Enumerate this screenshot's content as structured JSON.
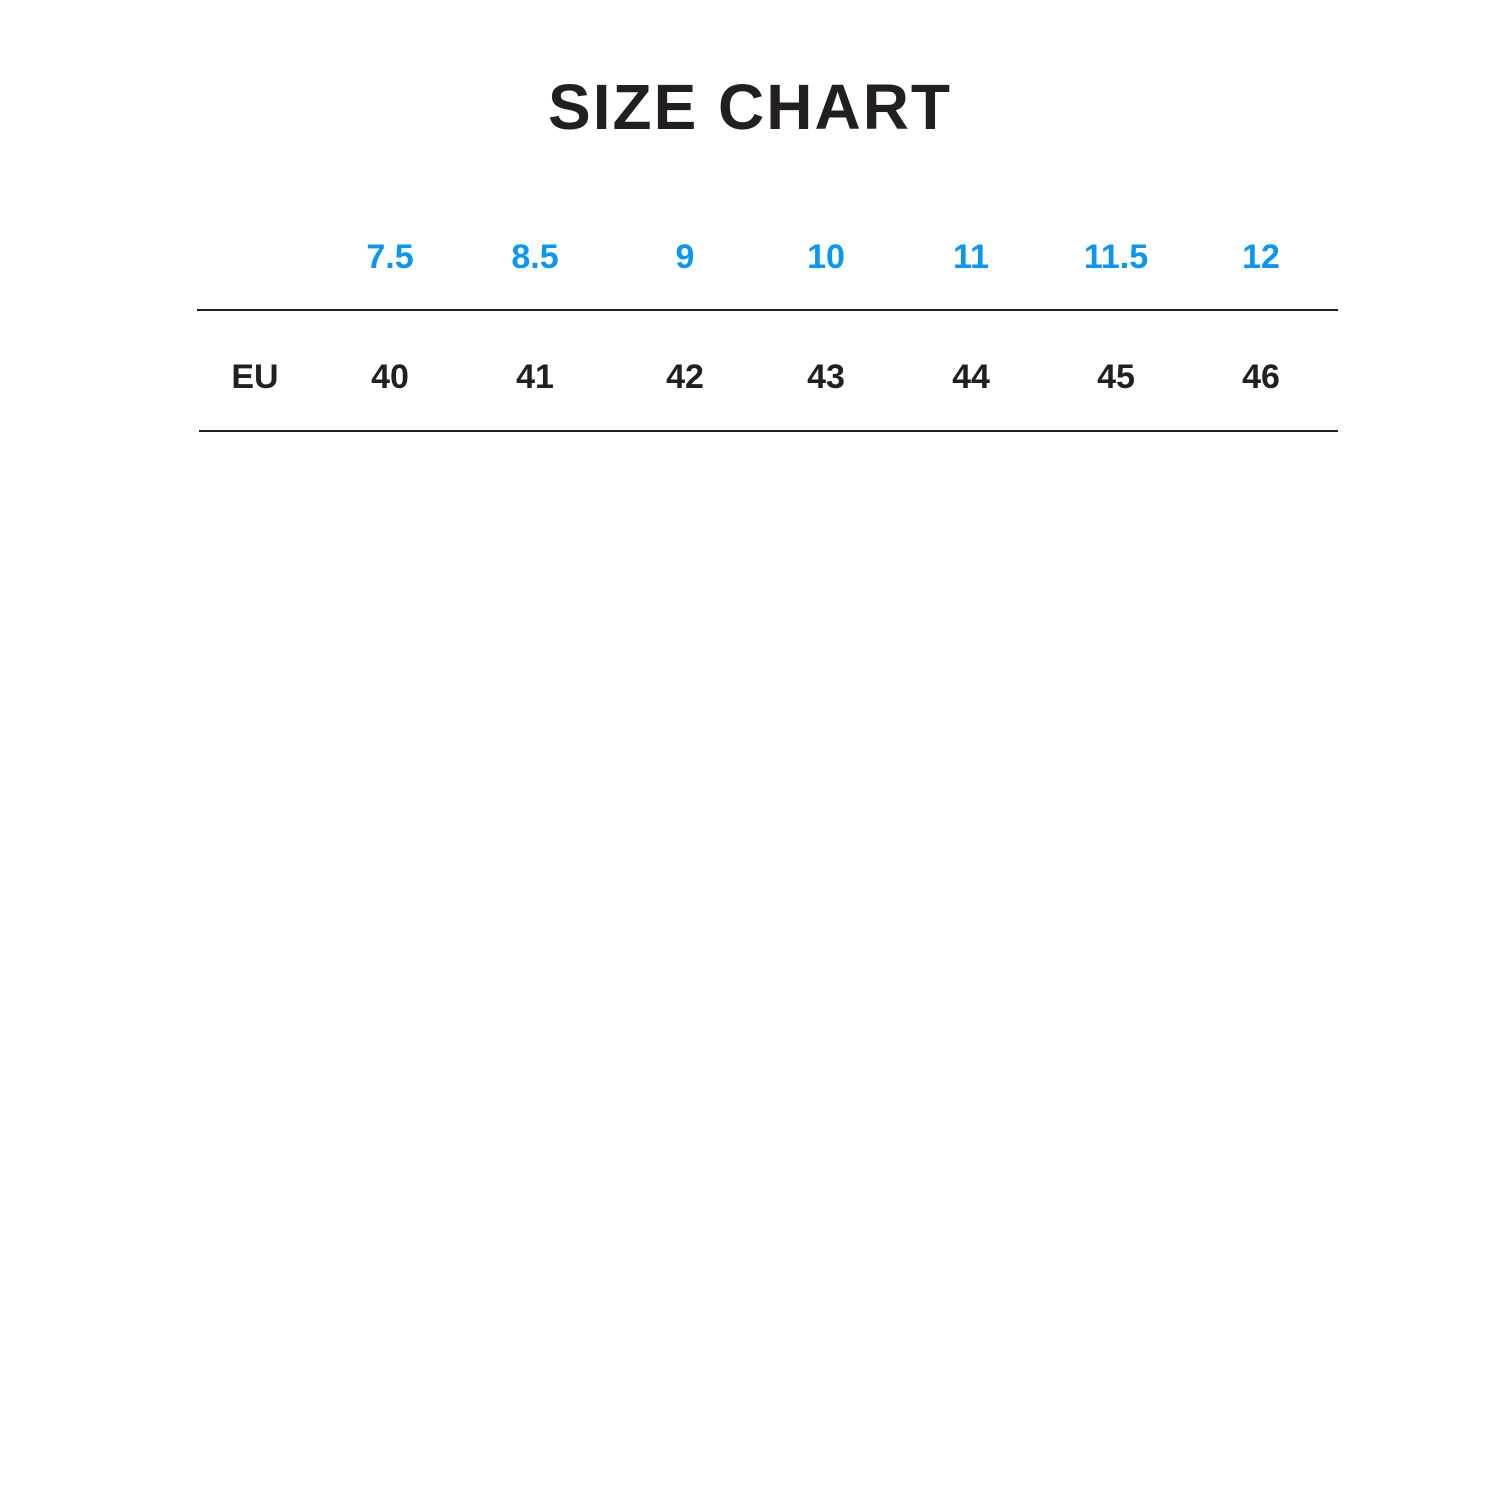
{
  "title": "SIZE CHART",
  "accent_color": "#0a96f5",
  "table": {
    "header_label": "",
    "header_sizes": [
      "7.5",
      "8.5",
      "9",
      "10",
      "11",
      "11.5",
      "12"
    ],
    "rows": [
      {
        "label": "EU",
        "values": [
          "40",
          "41",
          "42",
          "43",
          "44",
          "45",
          "46"
        ]
      }
    ]
  }
}
